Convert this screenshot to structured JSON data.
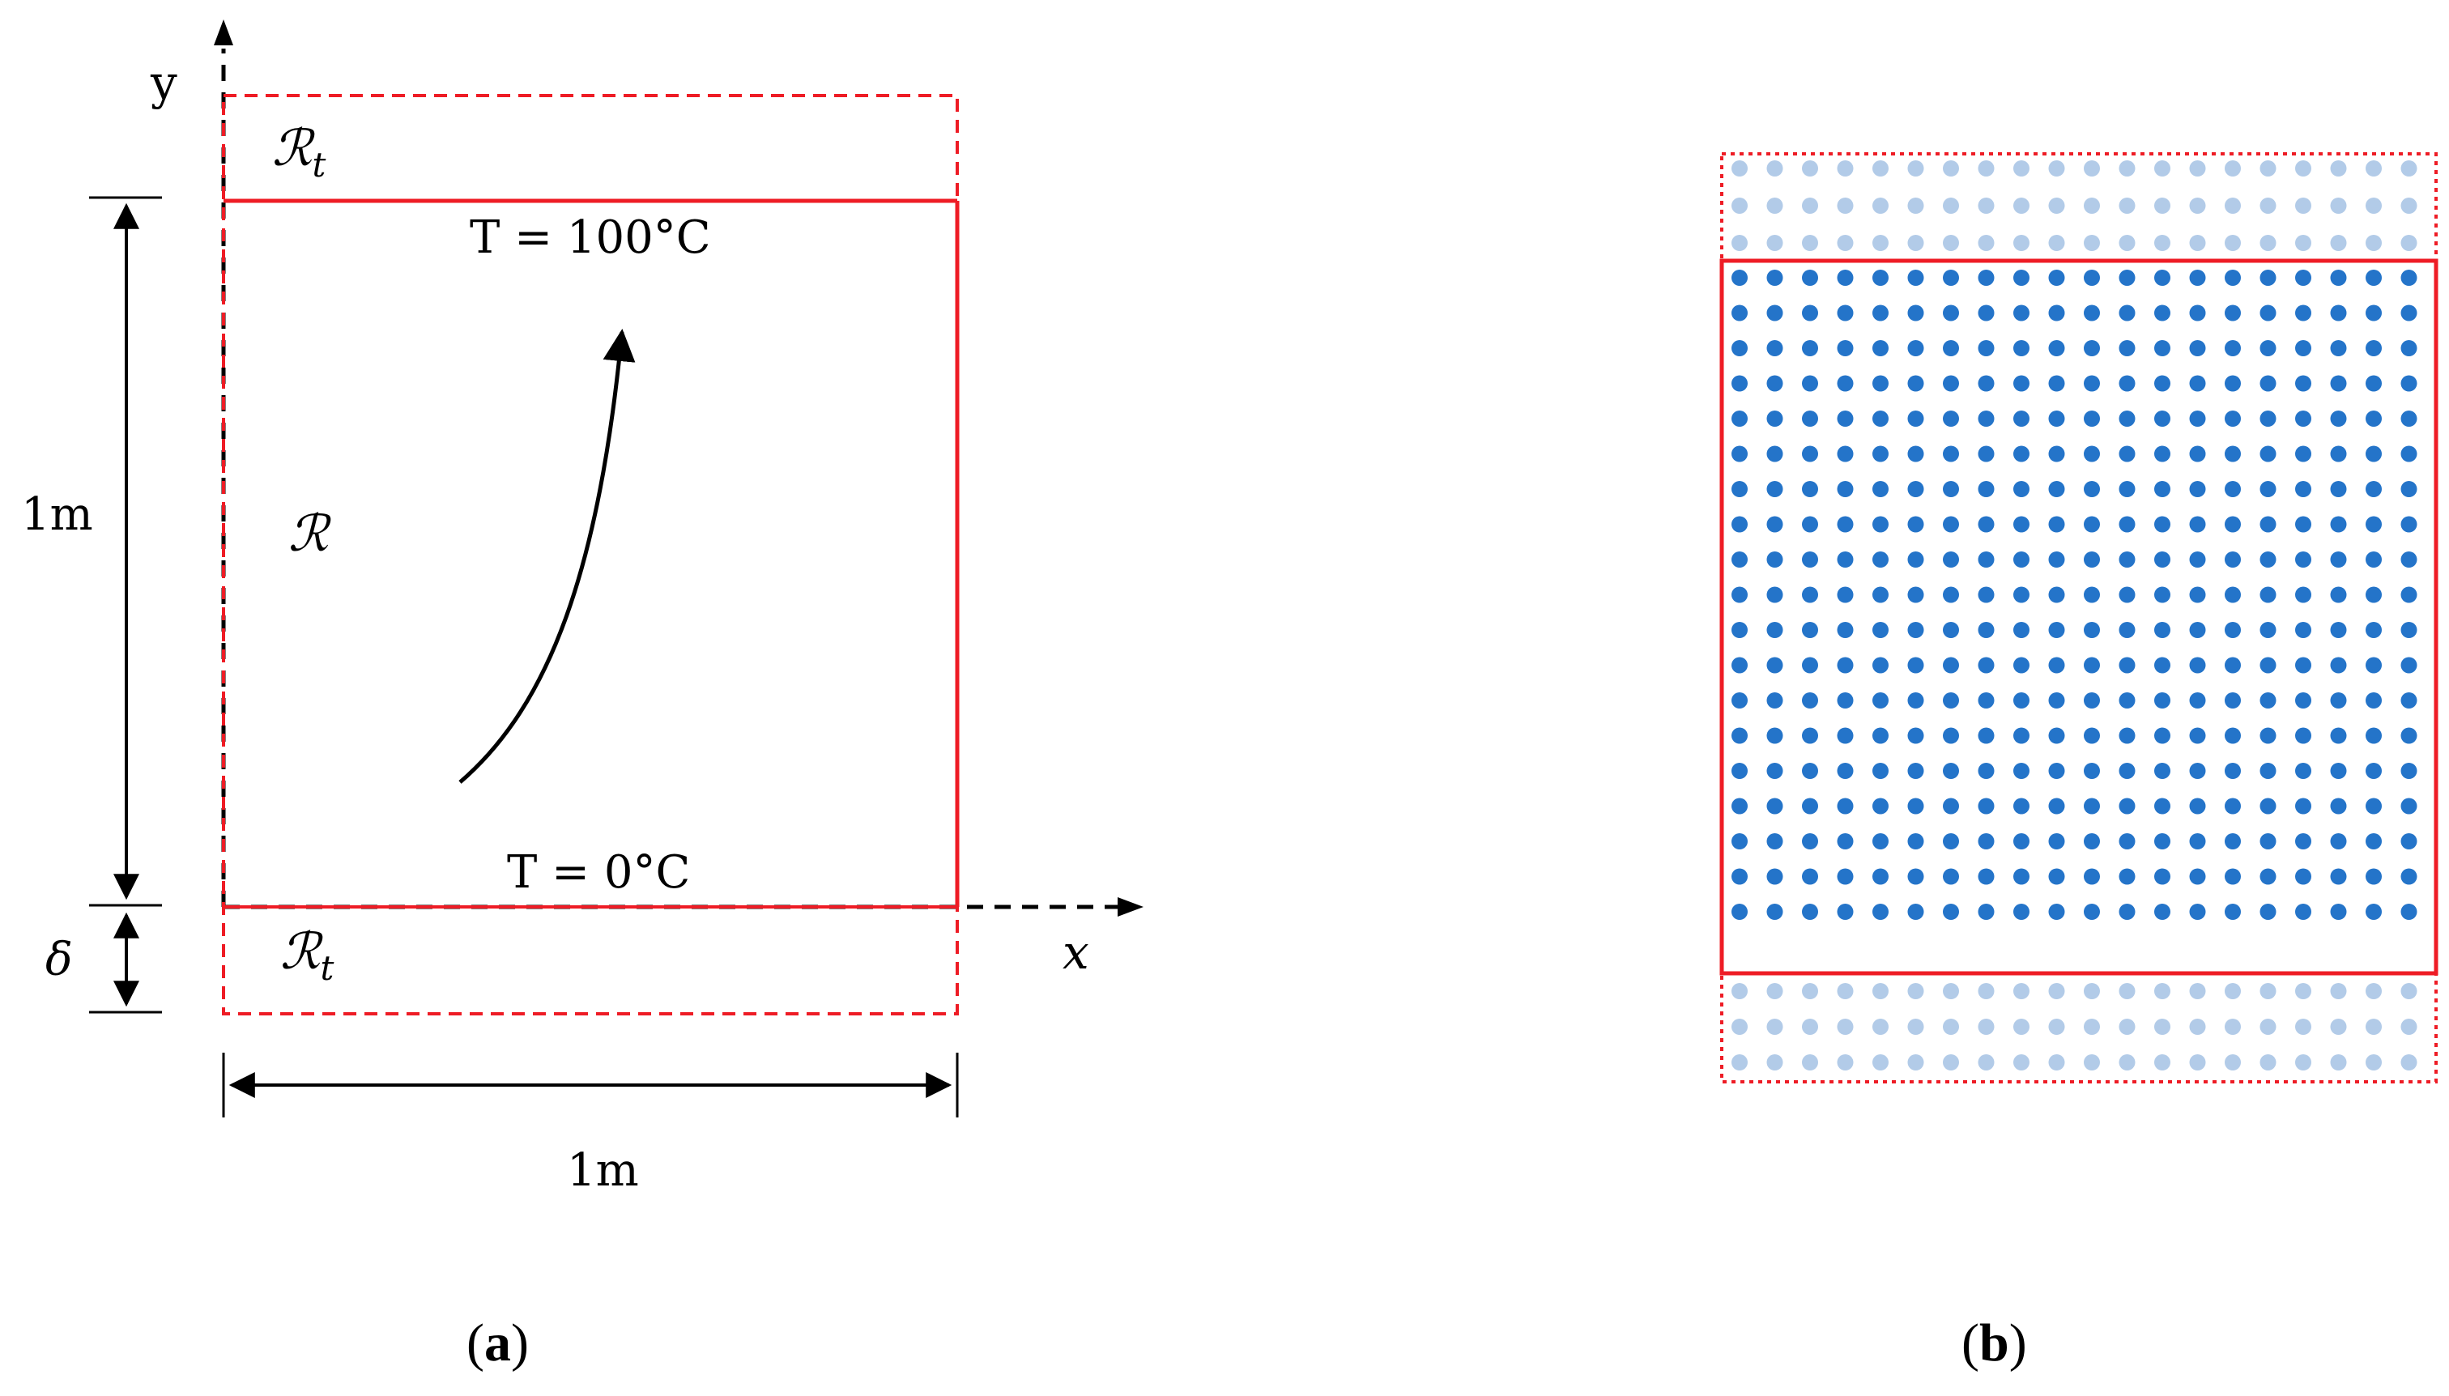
{
  "panel_a": {
    "label_letter": "a",
    "y_axis_label": "y",
    "x_axis_label": "x",
    "top_region": {
      "symbol": "ℛ",
      "subscript": "t"
    },
    "bottom_region": {
      "symbol": "ℛ",
      "subscript": "t"
    },
    "main_region": {
      "symbol": "ℛ"
    },
    "top_boundary_label": "T = 100°C",
    "bottom_boundary_label": "T = 0°C",
    "height_dimension_label": "1m",
    "width_dimension_label": "1m",
    "thickness_label": "δ"
  },
  "panel_b": {
    "label_letter": "b",
    "grid": {
      "columns": 20,
      "inner_rows": 19,
      "top_ghost_rows": 3,
      "bottom_ghost_rows": 3
    }
  },
  "colors": {
    "boundary_red": "#ee1c25",
    "node_dark": "#2474c9",
    "node_light": "#b2cbe8",
    "ink": "#000000"
  }
}
